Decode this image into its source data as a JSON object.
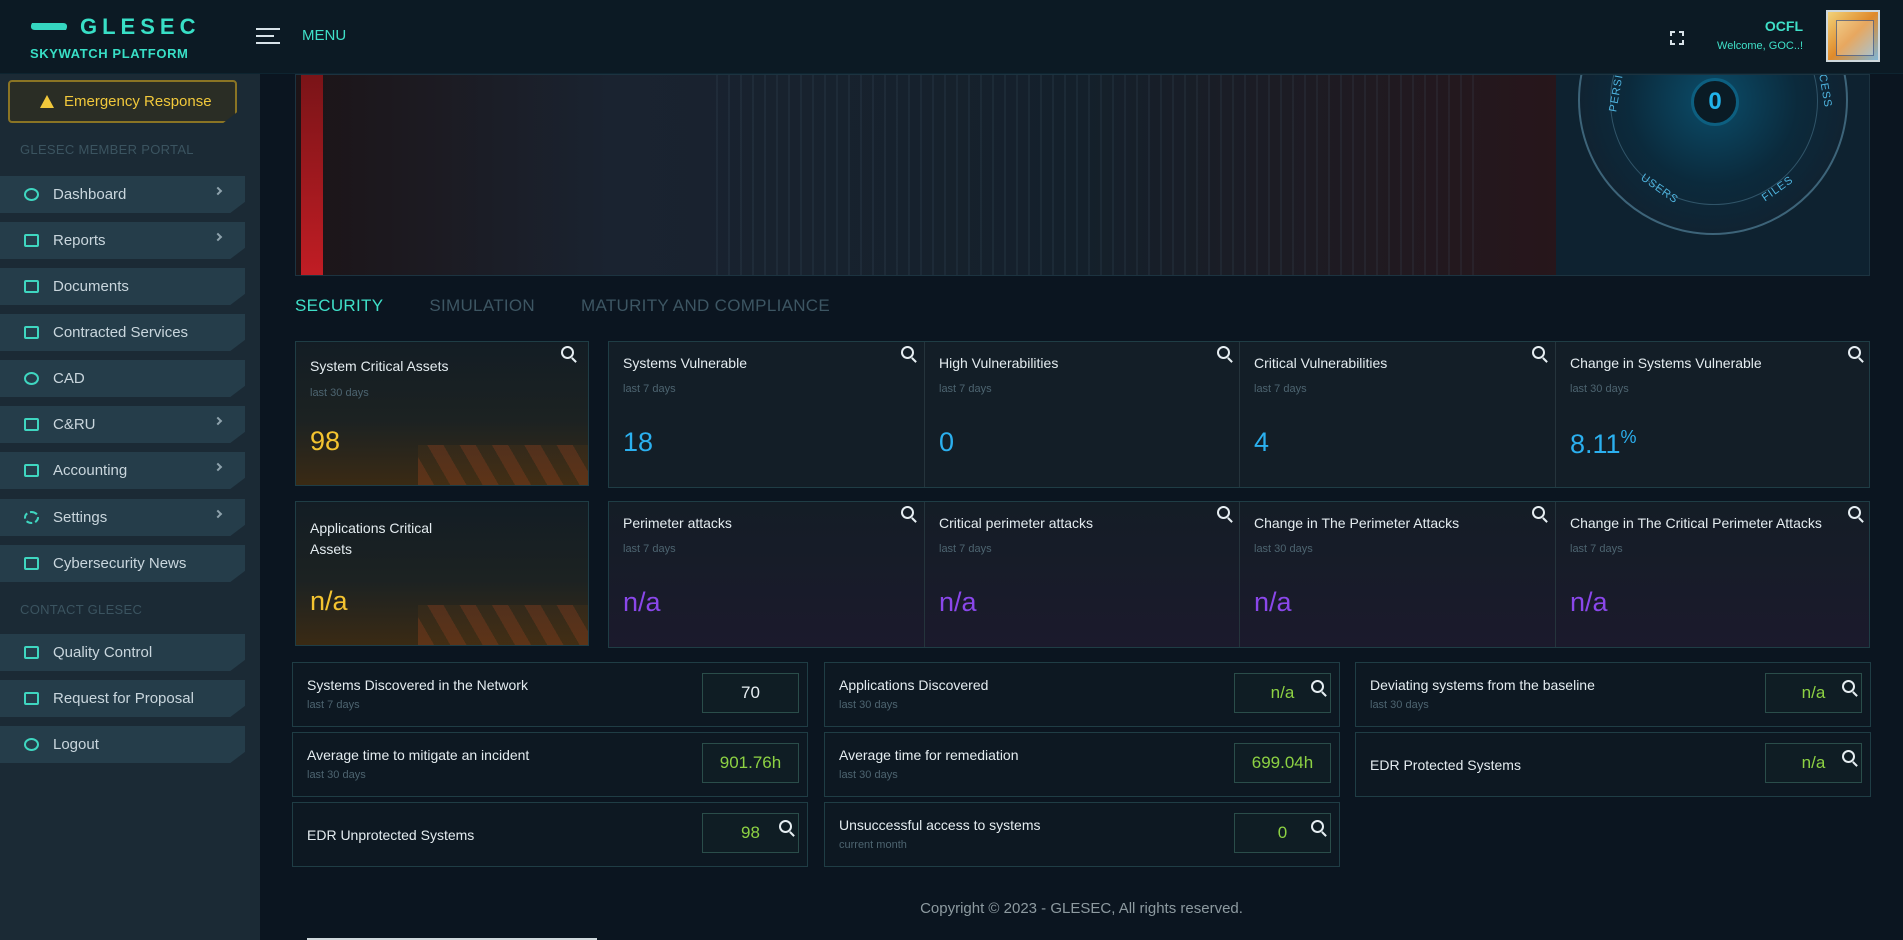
{
  "brand": {
    "name": "GLESEC",
    "platform": "SKYWATCH PLATFORM"
  },
  "topbar": {
    "menu_label": "MENU",
    "user_name": "OCFL",
    "welcome": "Welcome, GOC..!"
  },
  "sidebar": {
    "emergency_label": "Emergency Response",
    "portal_label": "GLESEC MEMBER PORTAL",
    "items": [
      {
        "label": "Dashboard",
        "icon": "dashboard-icon"
      },
      {
        "label": "Reports",
        "icon": "monitor-icon"
      },
      {
        "label": "Documents",
        "icon": "save-icon"
      },
      {
        "label": "Contracted Services",
        "icon": "briefcase-icon"
      },
      {
        "label": "CAD",
        "icon": "antenna-icon"
      },
      {
        "label": "C&RU",
        "icon": "briefcase-icon"
      },
      {
        "label": "Accounting",
        "icon": "briefcase-icon"
      },
      {
        "label": "Settings",
        "icon": "gear-icon"
      },
      {
        "label": "Cybersecurity News",
        "icon": "rss-icon"
      }
    ],
    "contact_label": "CONTACT GLESEC",
    "contact_items": [
      {
        "label": "Quality Control",
        "icon": "clipboard-icon"
      },
      {
        "label": "Request for Proposal",
        "icon": "checklist-icon"
      },
      {
        "label": "Logout",
        "icon": "logout-icon"
      }
    ]
  },
  "radar": {
    "value": "0",
    "labels": [
      "PERSIS",
      "CESS",
      "USERS",
      "FILES"
    ]
  },
  "tabs": [
    "SECURITY",
    "SIMULATION",
    "MATURITY AND COMPLIANCE"
  ],
  "cards_row1": {
    "asset": {
      "title": "System Critical Assets",
      "sub": "last 30 days",
      "value": "98"
    },
    "items": [
      {
        "title": "Systems Vulnerable",
        "sub": "last 7 days",
        "value": "18"
      },
      {
        "title": "High Vulnerabilities",
        "sub": "last 7 days",
        "value": "0"
      },
      {
        "title": "Critical Vulnerabilities",
        "sub": "last 7 days",
        "value": "4"
      },
      {
        "title": "Change in Systems Vulnerable",
        "sub": "last 30 days",
        "value": "8.11",
        "unit": "%"
      }
    ]
  },
  "cards_row2": {
    "asset": {
      "title": "Applications Critical",
      "title2": "Assets",
      "value": "n/a"
    },
    "items": [
      {
        "title": "Perimeter attacks",
        "sub": "last 7 days",
        "value": "n/a"
      },
      {
        "title": "Critical perimeter attacks",
        "sub": "last 7 days",
        "value": "n/a"
      },
      {
        "title": "Change in The Perimeter Attacks",
        "sub": "last 30 days",
        "value": "n/a"
      },
      {
        "title": "Change in The Critical Perimeter Attacks",
        "sub": "last 7 days",
        "value": "n/a"
      }
    ]
  },
  "stats": [
    {
      "title": "Systems Discovered in the Network",
      "sub": "last 7 days",
      "value": "70"
    },
    {
      "title": "Applications Discovered",
      "sub": "last 30 days",
      "value": "n/a"
    },
    {
      "title": "Deviating systems from the baseline",
      "sub": "last 30 days",
      "value": "n/a"
    },
    {
      "title": "Average time to mitigate an incident",
      "sub": "last 30 days",
      "value": "901.76h"
    },
    {
      "title": "Average time for remediation",
      "sub": "last 30 days",
      "value": "699.04h"
    },
    {
      "title": "EDR Protected Systems",
      "sub": "",
      "value": "n/a"
    },
    {
      "title": "EDR Unprotected Systems",
      "sub": "",
      "value": "98"
    },
    {
      "title": "Unsuccessful access to systems",
      "sub": "current month",
      "value": "0"
    }
  ],
  "footer": "Copyright © 2023 - GLESEC, All rights reserved.",
  "colors": {
    "accent": "#3fe0c8",
    "blue": "#2bb0ef",
    "purple": "#8a47ea",
    "yellow": "#f4c430",
    "green": "#8dd243"
  }
}
